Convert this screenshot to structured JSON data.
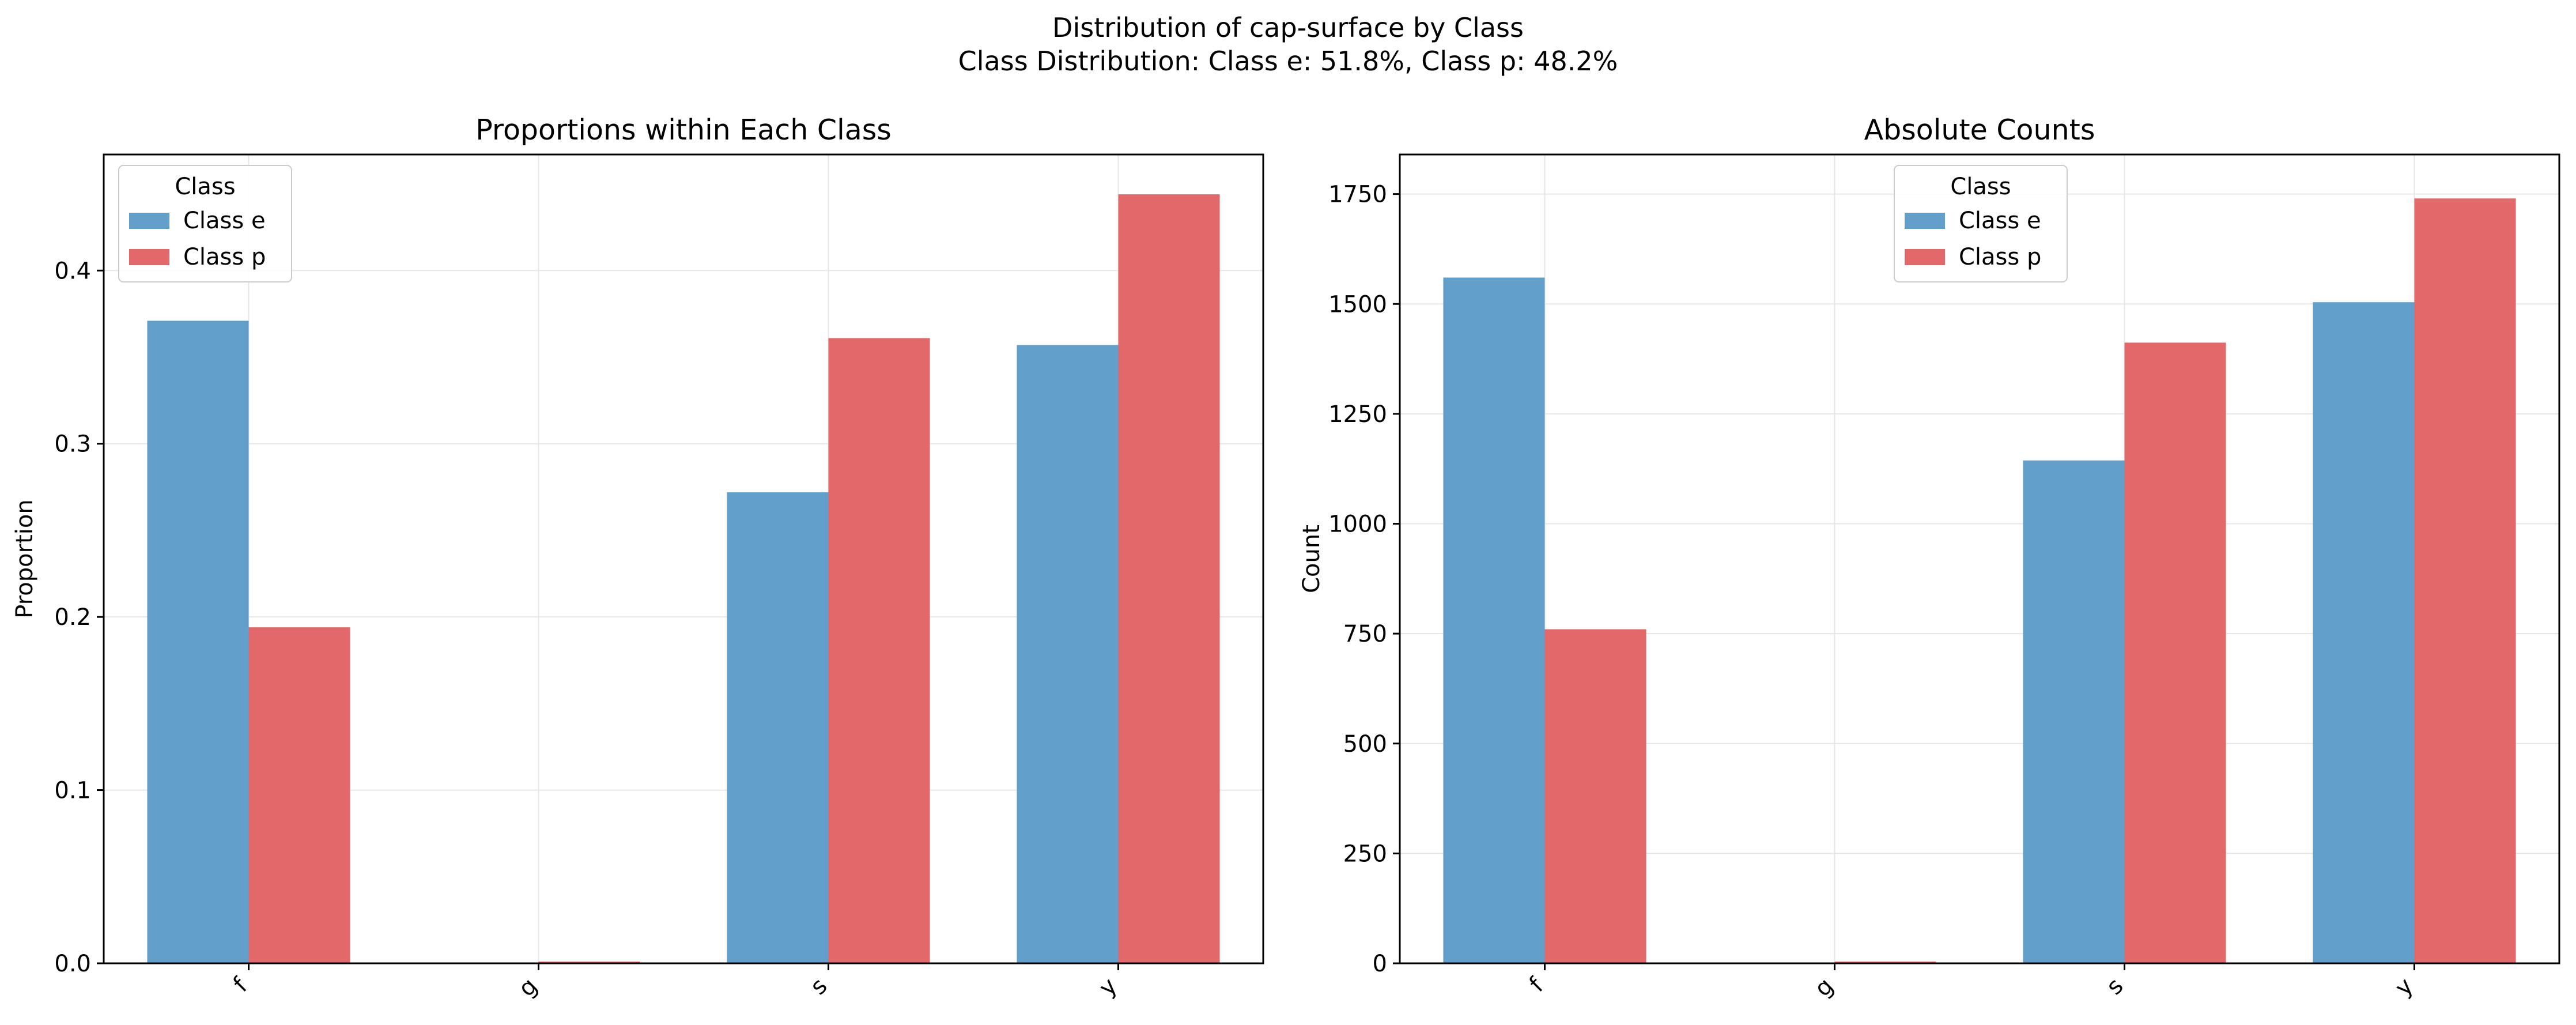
{
  "figure": {
    "suptitle_line1": "Distribution of cap-surface by Class",
    "suptitle_line2": "Class Distribution: Class e: 51.8%, Class p: 48.2%"
  },
  "colors": {
    "class_e": "#62a0cb",
    "class_p": "#e2686a",
    "grid": "#e6e6e6"
  },
  "chart_data": [
    {
      "type": "bar",
      "title": "Proportions within Each Class",
      "xlabel": "",
      "ylabel": "Proportion",
      "categories": [
        "f",
        "g",
        "s",
        "y"
      ],
      "series": [
        {
          "name": "Class e",
          "values": [
            0.371,
            0.0,
            0.272,
            0.357
          ]
        },
        {
          "name": "Class p",
          "values": [
            0.194,
            0.001,
            0.361,
            0.444
          ]
        }
      ],
      "ylim": [
        0,
        0.467
      ],
      "yticks": [
        "0.0",
        "0.1",
        "0.2",
        "0.3",
        "0.4"
      ],
      "ytick_values": [
        0,
        0.1,
        0.2,
        0.3,
        0.4
      ],
      "grid": true,
      "legend": {
        "title": "Class",
        "placement": "top-left"
      }
    },
    {
      "type": "bar",
      "title": "Absolute Counts",
      "xlabel": "",
      "ylabel": "Count",
      "categories": [
        "f",
        "g",
        "s",
        "y"
      ],
      "series": [
        {
          "name": "Class e",
          "values": [
            1560,
            0,
            1144,
            1504
          ]
        },
        {
          "name": "Class p",
          "values": [
            760,
            4,
            1412,
            1740
          ]
        }
      ],
      "ylim": [
        0,
        1840
      ],
      "yticks": [
        "0",
        "250",
        "500",
        "750",
        "1000",
        "1250",
        "1500",
        "1750"
      ],
      "ytick_values": [
        0,
        250,
        500,
        750,
        1000,
        1250,
        1500,
        1750
      ],
      "grid": true,
      "legend": {
        "title": "Class",
        "placement": "top-center"
      }
    }
  ]
}
